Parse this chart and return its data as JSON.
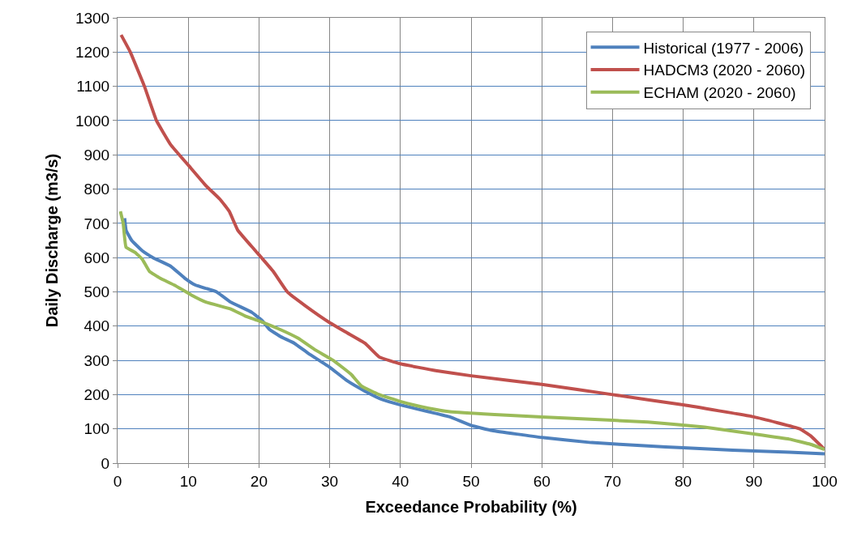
{
  "chart_data": {
    "type": "line",
    "xlabel": "Exceedance Probability (%)",
    "ylabel": "Daily Discharge (m3/s)",
    "xlim": [
      0,
      100
    ],
    "xticks": [
      0,
      10,
      20,
      30,
      40,
      50,
      60,
      70,
      80,
      90,
      100
    ],
    "ylim": [
      0,
      1300
    ],
    "yticks": [
      0,
      100,
      200,
      300,
      400,
      500,
      600,
      700,
      800,
      900,
      1000,
      1100,
      1200,
      1300
    ],
    "grid": true,
    "legend": "top right",
    "marker": "none",
    "line_style": "solid",
    "series": [
      {
        "name": "Historical (1977 - 2006)",
        "color": "#4f81bd",
        "x": [
          1,
          1.2,
          2,
          3.5,
          5,
          7.5,
          9.5,
          11,
          14,
          16,
          19,
          20.5,
          21.5,
          23,
          25,
          27,
          30,
          32.5,
          35,
          37.5,
          40,
          44,
          47,
          50,
          53,
          60,
          67,
          75,
          80,
          87,
          95,
          100
        ],
        "values": [
          715,
          680,
          650,
          620,
          600,
          575,
          540,
          520,
          500,
          470,
          440,
          415,
          390,
          370,
          350,
          320,
          280,
          240,
          210,
          185,
          170,
          150,
          135,
          110,
          95,
          75,
          60,
          50,
          45,
          38,
          32,
          27
        ]
      },
      {
        "name": "HADCM3 (2020 - 2060)",
        "color": "#c0504d",
        "x": [
          0.5,
          1.8,
          3.8,
          5.5,
          7.5,
          10,
          12.5,
          14.5,
          15.8,
          17,
          19.5,
          22,
          24,
          26.5,
          30,
          32.5,
          35,
          37,
          40,
          45,
          50,
          60,
          70,
          80,
          90,
          96.5,
          98,
          100
        ],
        "values": [
          1250,
          1200,
          1100,
          1000,
          930,
          870,
          810,
          770,
          735,
          680,
          620,
          560,
          500,
          460,
          410,
          380,
          350,
          310,
          290,
          270,
          255,
          230,
          200,
          170,
          135,
          100,
          80,
          40
        ]
      },
      {
        "name": "ECHAM (2020 - 2060)",
        "color": "#9bbb59",
        "x": [
          0.4,
          0.8,
          1.2,
          2.5,
          3.5,
          4.5,
          6,
          8,
          10.5,
          12.5,
          16,
          18,
          20,
          23,
          25.5,
          28,
          30.5,
          33,
          34.5,
          37,
          40,
          44,
          47,
          55,
          65,
          75,
          83,
          90,
          95,
          98,
          100
        ],
        "values": [
          735,
          700,
          630,
          615,
          595,
          560,
          540,
          520,
          490,
          470,
          450,
          430,
          415,
          390,
          365,
          330,
          300,
          260,
          225,
          200,
          180,
          160,
          150,
          140,
          130,
          120,
          105,
          85,
          70,
          55,
          40
        ]
      }
    ]
  }
}
